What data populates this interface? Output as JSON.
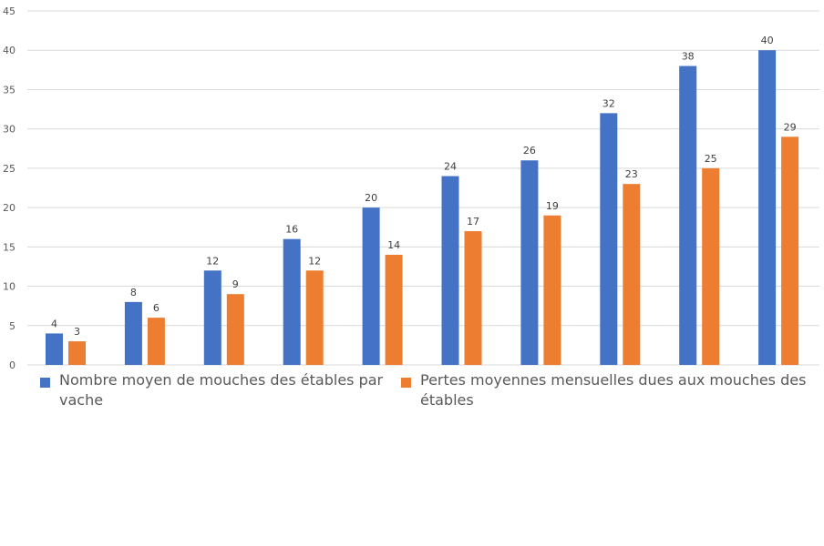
{
  "colors": {
    "series1": "#4472c4",
    "series2": "#ed7d31",
    "grid": "#d9d9d9"
  },
  "chart_data": {
    "type": "bar",
    "title": "",
    "xlabel": "",
    "ylabel": "",
    "ylim": [
      0,
      45
    ],
    "yticks": [
      0,
      5,
      10,
      15,
      20,
      25,
      30,
      35,
      40,
      45
    ],
    "grid": true,
    "legend_position": "bottom",
    "categories": [
      "",
      "",
      "",
      "",
      "",
      "",
      "",
      "",
      "",
      ""
    ],
    "series": [
      {
        "name": "Nombre moyen de mouches des étables par vache",
        "values": [
          4,
          8,
          12,
          16,
          20,
          24,
          26,
          32,
          38,
          40
        ]
      },
      {
        "name": "Pertes moyennes mensuelles dues aux mouches des étables",
        "values": [
          3,
          6,
          9,
          12,
          14,
          17,
          19,
          23,
          25,
          29
        ]
      }
    ]
  }
}
